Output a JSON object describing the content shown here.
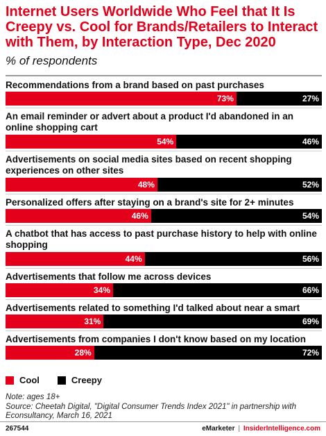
{
  "chart_data": {
    "type": "bar",
    "orientation": "horizontal",
    "stacked": true,
    "title": "Internet Users Worldwide Who Feel that It Is Creepy vs. Cool for Brands/Retailers to Interact with Them, by Interaction Type, Dec 2020",
    "subtitle": "% of respondents",
    "categories": [
      "Recommendations from a brand based on past purchases",
      "An email reminder or advert about a product I'd abandoned in an online shopping cart",
      "Advertisements on social media sites based on recent shopping experiences on other sites",
      "Personalized offers after staying on a brand's site for 2+ minutes",
      "A chatbot that has access to past purchase history to help with online shopping",
      "Advertisements  that follow me across devices",
      "Advertisements related to something I'd talked about near a smart device",
      "Advertisements from companies I don't know based on my location data"
    ],
    "series": [
      {
        "name": "Cool",
        "color": "#e4001b",
        "values": [
          73,
          54,
          48,
          46,
          44,
          34,
          31,
          28
        ],
        "labels": [
          "73%",
          "54%",
          "48%",
          "46%",
          "44%",
          "34%",
          "31%",
          "28%"
        ]
      },
      {
        "name": "Creepy",
        "color": "#000000",
        "values": [
          27,
          46,
          52,
          54,
          56,
          66,
          69,
          72
        ],
        "labels": [
          "27%",
          "46%",
          "52%",
          "54%",
          "56%",
          "66%",
          "69%",
          "72%"
        ]
      }
    ],
    "xlim": [
      0,
      100
    ],
    "legend_position": "bottom-left"
  },
  "footer": {
    "note": "Note: ages 18+",
    "source": "Source: Cheetah Digital, \"Digital Consumer Trends Index 2021\" in partnership with Econsultancy, March 16, 2021",
    "chart_id": "267544",
    "brand_left": "eMarketer",
    "brand_sep": "|",
    "brand_right": "InsiderIntelligence.com"
  }
}
